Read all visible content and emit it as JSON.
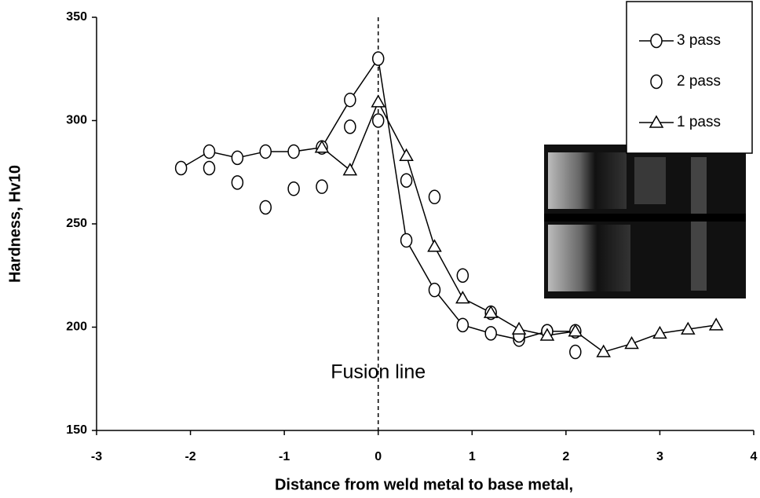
{
  "chart_data": {
    "type": "line",
    "x_label": "Distance from weld metal to base metal,",
    "y_label": "Hardness, Hv10",
    "xlim": [
      -3,
      4
    ],
    "xticks": [
      -3,
      -2,
      -1,
      0,
      1,
      2,
      3,
      4
    ],
    "ylim": [
      150,
      350
    ],
    "yticks": [
      150,
      200,
      250,
      300,
      350
    ],
    "grid": false,
    "legend": "upper right",
    "annotations": [
      {
        "text": "Fusion line",
        "x": 0
      }
    ],
    "series": [
      {
        "name": "3 pass",
        "color": "#000000",
        "marker": "circle",
        "line": true,
        "x": [
          -2.1,
          -1.8,
          -1.5,
          -1.2,
          -0.9,
          -0.6,
          -0.3,
          0,
          0.3,
          0.6,
          0.9,
          1.2,
          1.5,
          1.8,
          2.1
        ],
        "values": [
          277,
          285,
          282,
          285,
          285,
          287,
          310,
          330,
          242,
          218,
          201,
          197,
          194,
          198,
          198
        ]
      },
      {
        "name": "2 pass",
        "color": "#000000",
        "marker": "circle",
        "line": false,
        "x": [
          -1.8,
          -1.5,
          -1.2,
          -0.9,
          -0.6,
          -0.3,
          0,
          0.3,
          0.6,
          0.9,
          1.2,
          1.5,
          1.8,
          2.1
        ],
        "values": [
          277,
          270,
          258,
          267,
          268,
          297,
          300,
          271,
          263,
          225,
          207,
          196,
          198,
          188
        ]
      },
      {
        "name": "1 pass",
        "color": "#000000",
        "marker": "triangle",
        "line": true,
        "x": [
          -0.6,
          -0.3,
          0,
          0.3,
          0.6,
          0.9,
          1.2,
          1.5,
          1.8,
          2.1,
          2.4,
          2.7,
          3.0,
          3.3,
          3.6
        ],
        "values": [
          287,
          276,
          309,
          283,
          239,
          214,
          207,
          199,
          196,
          198,
          188,
          192,
          197,
          199,
          201
        ]
      }
    ]
  }
}
